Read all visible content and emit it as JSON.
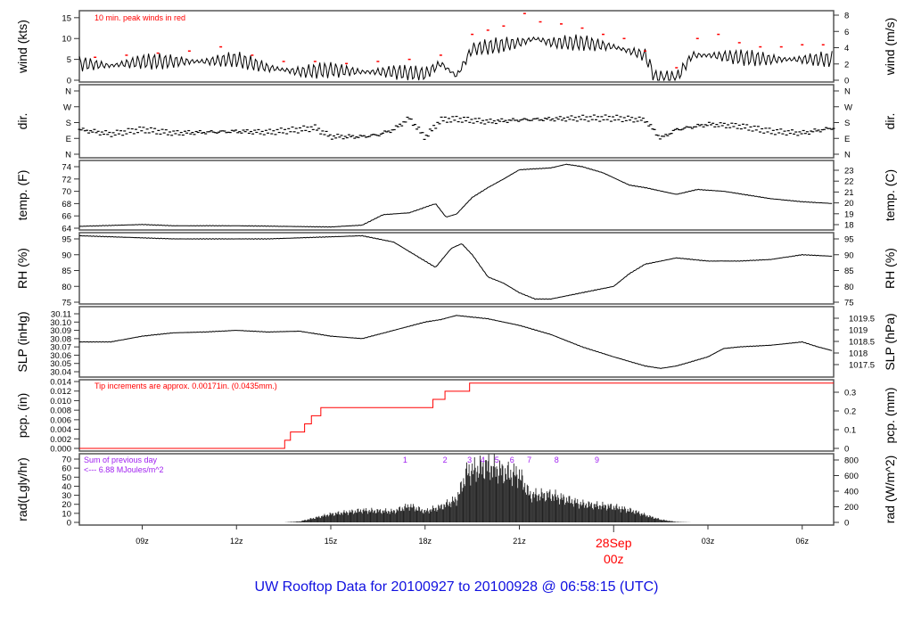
{
  "title": "UW Rooftop Data for 20100927  to  20100928 @ 06:58:15  (UTC)",
  "chart_data": {
    "type": "line",
    "x_range": [
      "27 07:00",
      "28 07:00"
    ],
    "x_ticks": [
      {
        "t": "27 09:00",
        "label": "09z"
      },
      {
        "t": "27 12:00",
        "label": "12z"
      },
      {
        "t": "27 15:00",
        "label": "15z"
      },
      {
        "t": "27 18:00",
        "label": "18z"
      },
      {
        "t": "27 21:00",
        "label": "21z"
      },
      {
        "t": "28 00:00",
        "label": "00z",
        "date_label": "28Sep"
      },
      {
        "t": "28 03:00",
        "label": "03z"
      },
      {
        "t": "28 06:00",
        "label": "06z"
      }
    ],
    "colors": {
      "line": "#000000",
      "peak": "#ff0000",
      "pcp": "#ff0000",
      "annot": "#a020f0",
      "date": "#ff0000",
      "title": "#1010e0"
    },
    "panels": [
      {
        "id": "wind",
        "ylabel": "wind (kts)",
        "ylabel_right": "wind (m/s)",
        "ylim": [
          0,
          15.5
        ],
        "yticks": [
          0,
          5,
          10,
          15
        ],
        "right_ylim": [
          0,
          8
        ],
        "right_ticks": [
          0,
          2,
          4,
          6,
          8
        ],
        "annotation": "10 min. peak winds in red",
        "series": [
          [
            "27 07:00",
            4
          ],
          [
            "27 08:00",
            3.5
          ],
          [
            "27 09:00",
            4.5
          ],
          [
            "27 10:00",
            4.5
          ],
          [
            "27 11:00",
            4.5
          ],
          [
            "27 12:00",
            5
          ],
          [
            "27 12:30",
            4
          ],
          [
            "27 13:00",
            3
          ],
          [
            "27 14:00",
            2
          ],
          [
            "27 15:00",
            2.5
          ],
          [
            "27 16:00",
            2
          ],
          [
            "27 17:00",
            2
          ],
          [
            "27 18:00",
            1.5
          ],
          [
            "27 18:30",
            4
          ],
          [
            "27 19:00",
            1
          ],
          [
            "27 19:30",
            7.5
          ],
          [
            "27 20:00",
            8
          ],
          [
            "27 21:00",
            9
          ],
          [
            "27 21:30",
            10
          ],
          [
            "27 22:00",
            9
          ],
          [
            "27 23:00",
            9
          ],
          [
            "28 00:00",
            8
          ],
          [
            "28 01:00",
            6
          ],
          [
            "28 01:20",
            0.5
          ],
          [
            "28 02:00",
            0.5
          ],
          [
            "28 02:30",
            6
          ],
          [
            "28 03:00",
            6
          ],
          [
            "28 04:00",
            5.5
          ],
          [
            "28 05:00",
            5
          ],
          [
            "28 06:00",
            5
          ],
          [
            "28 07:00",
            5
          ]
        ],
        "peaks": [
          [
            "27 07:30",
            5.5
          ],
          [
            "27 08:30",
            6
          ],
          [
            "27 09:30",
            6.5
          ],
          [
            "27 10:30",
            7
          ],
          [
            "27 11:30",
            8
          ],
          [
            "27 12:30",
            6
          ],
          [
            "27 13:30",
            4.5
          ],
          [
            "27 14:30",
            4.5
          ],
          [
            "27 15:30",
            4
          ],
          [
            "27 16:30",
            4.5
          ],
          [
            "27 17:30",
            5
          ],
          [
            "27 18:30",
            6
          ],
          [
            "27 19:30",
            11
          ],
          [
            "27 20:00",
            12
          ],
          [
            "27 20:30",
            13
          ],
          [
            "27 21:10",
            16
          ],
          [
            "27 21:40",
            14
          ],
          [
            "27 22:20",
            13.5
          ],
          [
            "27 23:00",
            12.5
          ],
          [
            "27 23:40",
            11
          ],
          [
            "28 00:20",
            10
          ],
          [
            "28 01:00",
            7
          ],
          [
            "28 02:00",
            3
          ],
          [
            "28 02:40",
            10
          ],
          [
            "28 03:20",
            11
          ],
          [
            "28 04:00",
            9
          ],
          [
            "28 04:40",
            8
          ],
          [
            "28 05:20",
            8
          ],
          [
            "28 06:00",
            8.5
          ],
          [
            "28 06:40",
            8.5
          ]
        ]
      },
      {
        "id": "dir",
        "ylabel": "dir.",
        "ylabel_right": "dir.",
        "ylim": [
          0,
          360
        ],
        "ytick_labels": [
          {
            "v": 0,
            "l": "N"
          },
          {
            "v": 90,
            "l": "E"
          },
          {
            "v": 180,
            "l": "S"
          },
          {
            "v": 270,
            "l": "W"
          },
          {
            "v": 360,
            "l": "N"
          }
        ],
        "series": [
          [
            "27 07:00",
            140
          ],
          [
            "27 08:00",
            115
          ],
          [
            "27 09:00",
            140
          ],
          [
            "27 10:00",
            120
          ],
          [
            "27 11:00",
            125
          ],
          [
            "27 12:00",
            130
          ],
          [
            "27 13:00",
            125
          ],
          [
            "27 14:00",
            140
          ],
          [
            "27 14:30",
            150
          ],
          [
            "27 15:00",
            100
          ],
          [
            "27 16:00",
            100
          ],
          [
            "27 16:30",
            110
          ],
          [
            "27 17:00",
            140
          ],
          [
            "27 17:30",
            205
          ],
          [
            "27 18:00",
            95
          ],
          [
            "27 18:30",
            195
          ],
          [
            "27 19:00",
            200
          ],
          [
            "27 20:00",
            185
          ],
          [
            "27 21:00",
            195
          ],
          [
            "27 22:00",
            200
          ],
          [
            "27 23:00",
            205
          ],
          [
            "28 00:00",
            205
          ],
          [
            "28 01:00",
            195
          ],
          [
            "28 01:30",
            90
          ],
          [
            "28 02:00",
            140
          ],
          [
            "28 03:00",
            170
          ],
          [
            "28 04:00",
            160
          ],
          [
            "28 05:00",
            130
          ],
          [
            "28 06:00",
            120
          ],
          [
            "28 07:00",
            150
          ]
        ]
      },
      {
        "id": "temp",
        "ylabel": "temp. (F)",
        "ylabel_right": "temp. (C)",
        "ylim": [
          63.8,
          75
        ],
        "yticks": [
          64,
          66,
          68,
          70,
          72,
          74
        ],
        "right_ticks": [
          18,
          19,
          20,
          21,
          22,
          23
        ],
        "series": [
          [
            "27 07:00",
            64.3
          ],
          [
            "27 09:00",
            64.6
          ],
          [
            "27 10:00",
            64.4
          ],
          [
            "27 12:00",
            64.4
          ],
          [
            "27 15:00",
            64.2
          ],
          [
            "27 16:00",
            64.5
          ],
          [
            "27 16:40",
            66.2
          ],
          [
            "27 17:30",
            66.5
          ],
          [
            "27 18:00",
            67.4
          ],
          [
            "27 18:20",
            68
          ],
          [
            "27 18:40",
            65.8
          ],
          [
            "27 19:00",
            66.3
          ],
          [
            "27 19:30",
            69
          ],
          [
            "27 20:00",
            70.6
          ],
          [
            "27 20:30",
            72
          ],
          [
            "27 21:00",
            73.5
          ],
          [
            "27 22:00",
            73.8
          ],
          [
            "27 22:30",
            74.4
          ],
          [
            "27 23:00",
            74
          ],
          [
            "27 23:40",
            73
          ],
          [
            "28 00:30",
            71
          ],
          [
            "28 01:00",
            70.6
          ],
          [
            "28 02:00",
            69.5
          ],
          [
            "28 02:40",
            70.3
          ],
          [
            "28 03:30",
            70
          ],
          [
            "28 05:00",
            68.8
          ],
          [
            "28 06:00",
            68.3
          ],
          [
            "28 07:00",
            68
          ]
        ]
      },
      {
        "id": "rh",
        "ylabel": "RH (%)",
        "ylabel_right": "RH (%)",
        "ylim": [
          74.5,
          96.5
        ],
        "yticks": [
          75,
          80,
          85,
          90,
          95
        ],
        "right_ticks": [
          75,
          80,
          85,
          90,
          95
        ],
        "series": [
          [
            "27 07:00",
            96
          ],
          [
            "27 10:00",
            95
          ],
          [
            "27 13:00",
            95
          ],
          [
            "27 16:00",
            96
          ],
          [
            "27 17:00",
            94
          ],
          [
            "27 18:00",
            88
          ],
          [
            "27 18:20",
            86
          ],
          [
            "27 18:50",
            92
          ],
          [
            "27 19:10",
            93.5
          ],
          [
            "27 19:30",
            90
          ],
          [
            "27 20:00",
            83
          ],
          [
            "27 20:30",
            81
          ],
          [
            "27 21:00",
            78
          ],
          [
            "27 21:30",
            76
          ],
          [
            "27 22:00",
            76
          ],
          [
            "27 23:00",
            78
          ],
          [
            "28 00:00",
            80
          ],
          [
            "28 00:30",
            84
          ],
          [
            "28 01:00",
            87
          ],
          [
            "28 02:00",
            89
          ],
          [
            "28 03:00",
            88
          ],
          [
            "28 04:00",
            88
          ],
          [
            "28 05:00",
            88.5
          ],
          [
            "28 06:00",
            90
          ],
          [
            "28 07:00",
            89.5
          ]
        ]
      },
      {
        "id": "slp",
        "ylabel": "SLP (inHg)",
        "ylabel_right": "SLP (hPa)",
        "ylim": [
          30.038,
          30.112
        ],
        "yticks": [
          30.04,
          30.05,
          30.06,
          30.07,
          30.08,
          30.09,
          30.1,
          30.11
        ],
        "right_ticks": [
          1017.5,
          1018,
          1018.5,
          1019,
          1019.5
        ],
        "series": [
          [
            "27 07:00",
            30.076
          ],
          [
            "27 08:00",
            30.076
          ],
          [
            "27 09:00",
            30.083
          ],
          [
            "27 10:00",
            30.087
          ],
          [
            "27 11:00",
            30.088
          ],
          [
            "27 12:00",
            30.09
          ],
          [
            "27 13:00",
            30.088
          ],
          [
            "27 14:00",
            30.089
          ],
          [
            "27 15:00",
            30.083
          ],
          [
            "27 16:00",
            30.08
          ],
          [
            "27 17:00",
            30.09
          ],
          [
            "27 17:30",
            30.095
          ],
          [
            "27 18:00",
            30.1
          ],
          [
            "27 18:30",
            30.103
          ],
          [
            "27 19:00",
            30.108
          ],
          [
            "27 19:30",
            30.106
          ],
          [
            "27 20:00",
            30.104
          ],
          [
            "27 21:00",
            30.096
          ],
          [
            "27 22:00",
            30.085
          ],
          [
            "27 23:00",
            30.07
          ],
          [
            "28 00:00",
            30.058
          ],
          [
            "28 01:00",
            30.047
          ],
          [
            "28 01:30",
            30.044
          ],
          [
            "28 02:00",
            30.047
          ],
          [
            "28 03:00",
            30.058
          ],
          [
            "28 03:30",
            30.068
          ],
          [
            "28 04:00",
            30.07
          ],
          [
            "28 05:00",
            30.072
          ],
          [
            "28 06:00",
            30.076
          ],
          [
            "28 06:30",
            30.07
          ],
          [
            "28 07:00",
            30.065
          ]
        ]
      },
      {
        "id": "pcp",
        "ylabel": "pcp.  (in)",
        "ylabel_right": "pcp.  (mm)",
        "ylim": [
          -0.0002,
          0.0142
        ],
        "yticks": [
          0,
          0.002,
          0.004,
          0.006,
          0.008,
          0.01,
          0.012,
          0.014
        ],
        "right_ticks": [
          0,
          0.1,
          0.2,
          0.3
        ],
        "annotation": "Tip increments are approx. 0.00171in. (0.0435mm.)",
        "series": [
          [
            "27 07:00",
            0
          ],
          [
            "27 13:32",
            0.00171
          ],
          [
            "27 13:43",
            0.00342
          ],
          [
            "27 14:10",
            0.00513
          ],
          [
            "27 14:23",
            0.00684
          ],
          [
            "27 14:41",
            0.00855
          ],
          [
            "27 18:15",
            0.01026
          ],
          [
            "27 18:38",
            0.01197
          ],
          [
            "27 19:25",
            0.01368
          ],
          [
            "28 07:00",
            0.01368
          ]
        ]
      },
      {
        "id": "rad",
        "ylabel": "rad(Lgly/hr)",
        "ylabel_right": "rad (W/m^2)",
        "ylim": [
          0,
          70
        ],
        "yticks": [
          0,
          10,
          20,
          30,
          40,
          50,
          60,
          70
        ],
        "right_ticks": [
          0,
          200,
          400,
          600,
          800
        ],
        "annotation": [
          "Sum of previous day",
          "<--- 6.88 MJoules/m^2"
        ],
        "markers": [
          {
            "t": "27 17:22",
            "l": "1"
          },
          {
            "t": "27 18:38",
            "l": "2"
          },
          {
            "t": "27 19:25",
            "l": "3"
          },
          {
            "t": "27 19:50",
            "l": "4"
          },
          {
            "t": "27 20:17",
            "l": "5"
          },
          {
            "t": "27 20:46",
            "l": "6"
          },
          {
            "t": "27 21:19",
            "l": "7"
          },
          {
            "t": "27 22:11",
            "l": "8"
          },
          {
            "t": "27 23:28",
            "l": "9"
          }
        ],
        "series": [
          [
            "27 13:30",
            0
          ],
          [
            "27 14:00",
            1
          ],
          [
            "27 15:00",
            9
          ],
          [
            "27 16:00",
            13
          ],
          [
            "27 17:00",
            12
          ],
          [
            "27 17:30",
            18
          ],
          [
            "27 18:00",
            12
          ],
          [
            "27 18:30",
            17
          ],
          [
            "27 19:00",
            25
          ],
          [
            "27 19:20",
            55
          ],
          [
            "27 20:00",
            62
          ],
          [
            "27 20:30",
            55
          ],
          [
            "27 21:00",
            52
          ],
          [
            "27 21:20",
            30
          ],
          [
            "27 22:00",
            30
          ],
          [
            "27 22:30",
            25
          ],
          [
            "27 23:00",
            20
          ],
          [
            "28 00:00",
            17
          ],
          [
            "28 00:40",
            12
          ],
          [
            "28 01:00",
            8
          ],
          [
            "28 01:30",
            3
          ],
          [
            "28 02:00",
            0.5
          ],
          [
            "28 02:30",
            0
          ]
        ]
      }
    ]
  }
}
